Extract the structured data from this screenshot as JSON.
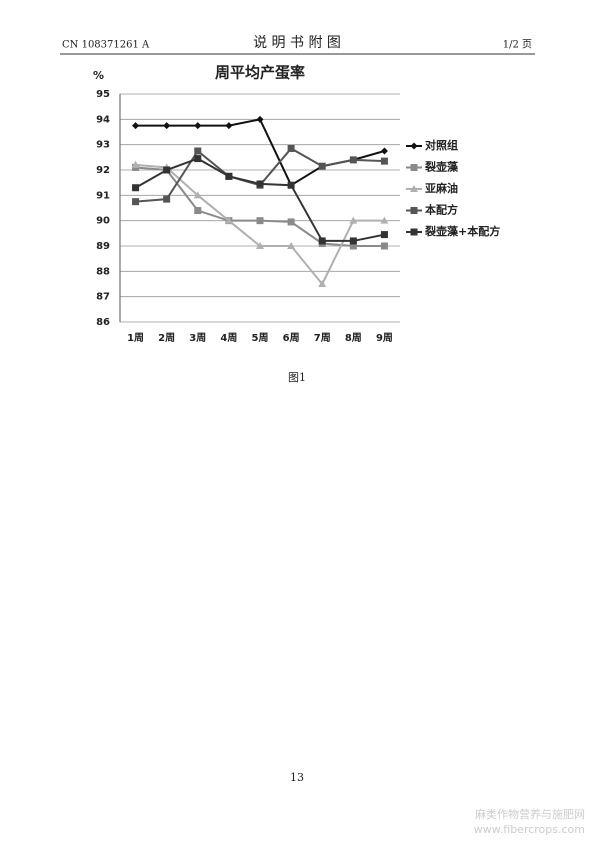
{
  "header": {
    "doc_no": "CN 108371261 A",
    "title": "说 明 书 附 图",
    "page": "1/2 页"
  },
  "chart_data": {
    "type": "line",
    "title": "周平均产蛋率",
    "y_label": "%",
    "categories": [
      "1周",
      "2周",
      "3周",
      "4周",
      "5周",
      "6周",
      "7周",
      "8周",
      "9周"
    ],
    "ylim": [
      86,
      95
    ],
    "yticks": [
      86,
      87,
      88,
      89,
      90,
      91,
      92,
      93,
      94,
      95
    ],
    "grid": true,
    "legend": "right",
    "series": [
      {
        "name": "对照组",
        "color": "#111111",
        "marker": "diamond",
        "values": [
          93.75,
          93.75,
          93.75,
          93.75,
          94.0,
          91.4,
          92.15,
          92.4,
          92.75
        ]
      },
      {
        "name": "裂壶藻",
        "color": "#8a8a8a",
        "marker": "square",
        "values": [
          92.1,
          92.0,
          90.4,
          90.0,
          90.0,
          89.95,
          89.1,
          89.0,
          89.0
        ]
      },
      {
        "name": "亚麻油",
        "color": "#b0b0b0",
        "marker": "triangle",
        "values": [
          92.2,
          92.1,
          91.0,
          90.0,
          89.0,
          89.0,
          87.5,
          90.0,
          90.0
        ]
      },
      {
        "name": "本配方",
        "color": "#555555",
        "marker": "square",
        "values": [
          90.75,
          90.85,
          92.75,
          91.75,
          91.4,
          92.85,
          92.15,
          92.4,
          92.35
        ]
      },
      {
        "name": "裂壶藻+本配方",
        "color": "#333333",
        "marker": "square",
        "values": [
          91.3,
          92.0,
          92.45,
          91.75,
          91.45,
          91.4,
          89.2,
          89.2,
          89.45
        ]
      }
    ]
  },
  "caption": "图1",
  "page_number": "13",
  "watermark": {
    "site": "麻类作物营养与施肥网",
    "url": "www.fibercrops.com"
  }
}
